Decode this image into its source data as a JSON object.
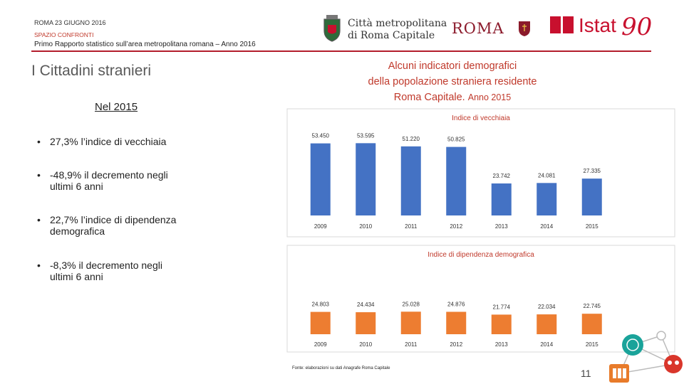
{
  "header": {
    "date": "ROMA 23 GIUGNO 2016",
    "section": "SPAZIO CONFRONTI",
    "report": "Primo Rapporto statistico sull’area metropolitana romana – Anno 2016"
  },
  "logos": {
    "citta_line1": "Città metropolitana",
    "citta_line2": "di Roma Capitale",
    "roma": "ROMA",
    "istat": "Istat",
    "istat_anniversary": "90"
  },
  "colors": {
    "accent": "#c0392b",
    "vecchiaia_bar": "#4472c4",
    "dipendenza_bar": "#ed7d31",
    "rule": "#b31c2c"
  },
  "slide": {
    "section_title": "I Cittadini stranieri",
    "heading_line1": "Alcuni indicatori demografici",
    "heading_line2": "della popolazione straniera residente",
    "heading_line3": "Roma Capitale.",
    "heading_year": "Anno 2015",
    "year_label": "Nel 2015",
    "bullets": [
      {
        "bold": "27,3%",
        "text": " l’indice di vecchiaia",
        "cont": ""
      },
      {
        "bold": "-48,9%",
        "text": " il decremento negli",
        "cont": "ultimi 6 anni"
      },
      {
        "bold": "22,7%",
        "text": " l’indice di dipendenza",
        "cont": "demografica"
      },
      {
        "bold": "-8,3%",
        "text": " il decremento negli",
        "cont": "ultimi 6 anni"
      }
    ],
    "source": "Fonte: elaborazioni su dati Anagrafe Roma Capitale",
    "page_number": "11"
  },
  "chart_data": [
    {
      "type": "bar",
      "title": "Indice di vecchiaia",
      "categories": [
        "2009",
        "2010",
        "2011",
        "2012",
        "2013",
        "2014",
        "2015"
      ],
      "values": [
        53.45,
        53.595,
        51.22,
        50.825,
        23.742,
        24.081,
        27.335
      ],
      "value_labels": [
        "53.450",
        "53.595",
        "51.220",
        "50.825",
        "23.742",
        "24.081",
        "27.335"
      ],
      "ylim": [
        0,
        58
      ],
      "grid": false,
      "legend": "none"
    },
    {
      "type": "bar",
      "title": "Indice di dipendenza demografica",
      "categories": [
        "2009",
        "2010",
        "2011",
        "2012",
        "2013",
        "2014",
        "2015"
      ],
      "values": [
        24.803,
        24.434,
        25.028,
        24.876,
        21.774,
        22.034,
        22.745
      ],
      "value_labels": [
        "24.803",
        "24.434",
        "25.028",
        "24.876",
        "21.774",
        "22.034",
        "22.745"
      ],
      "ylim": [
        0,
        150
      ],
      "grid": false,
      "legend": "none"
    }
  ]
}
